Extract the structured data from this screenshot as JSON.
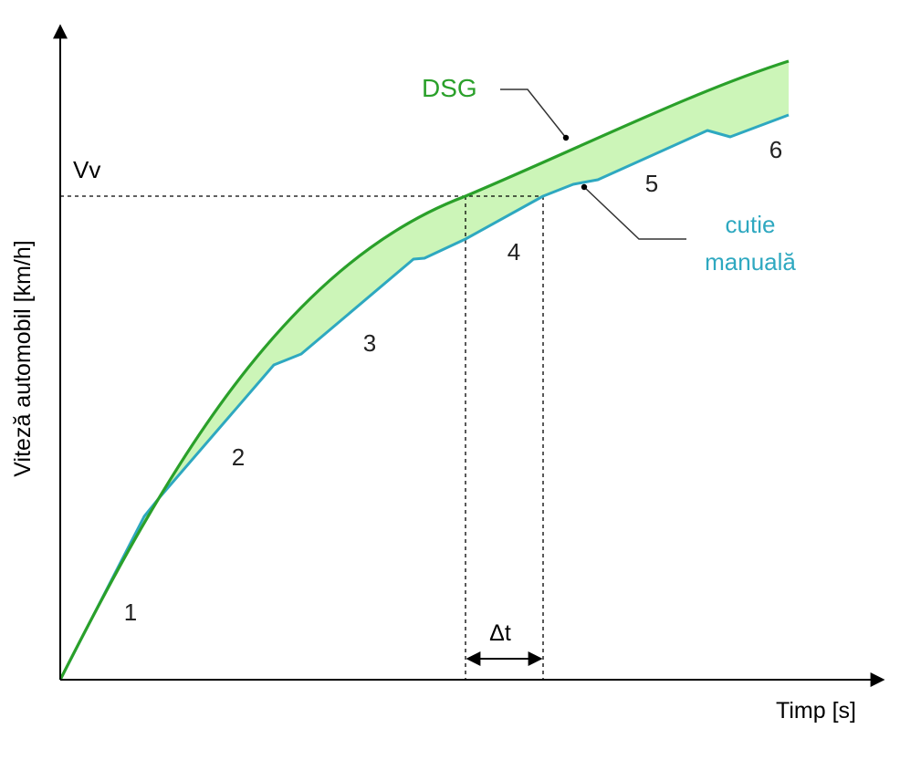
{
  "axes": {
    "y_label": "Viteză automobil [km/h]",
    "x_label": "Timp [s]"
  },
  "markers": {
    "speed_label": "Vv",
    "delta_label": "Δt"
  },
  "curves": {
    "dsg": {
      "label": "DSG",
      "color": "#2aa02a"
    },
    "manual": {
      "label_line1": "cutie",
      "label_line2": "manuală",
      "color": "#2ea8c0"
    },
    "fill_color": "#ccf5b8"
  },
  "gears": [
    "1",
    "2",
    "3",
    "4",
    "5",
    "6"
  ]
}
